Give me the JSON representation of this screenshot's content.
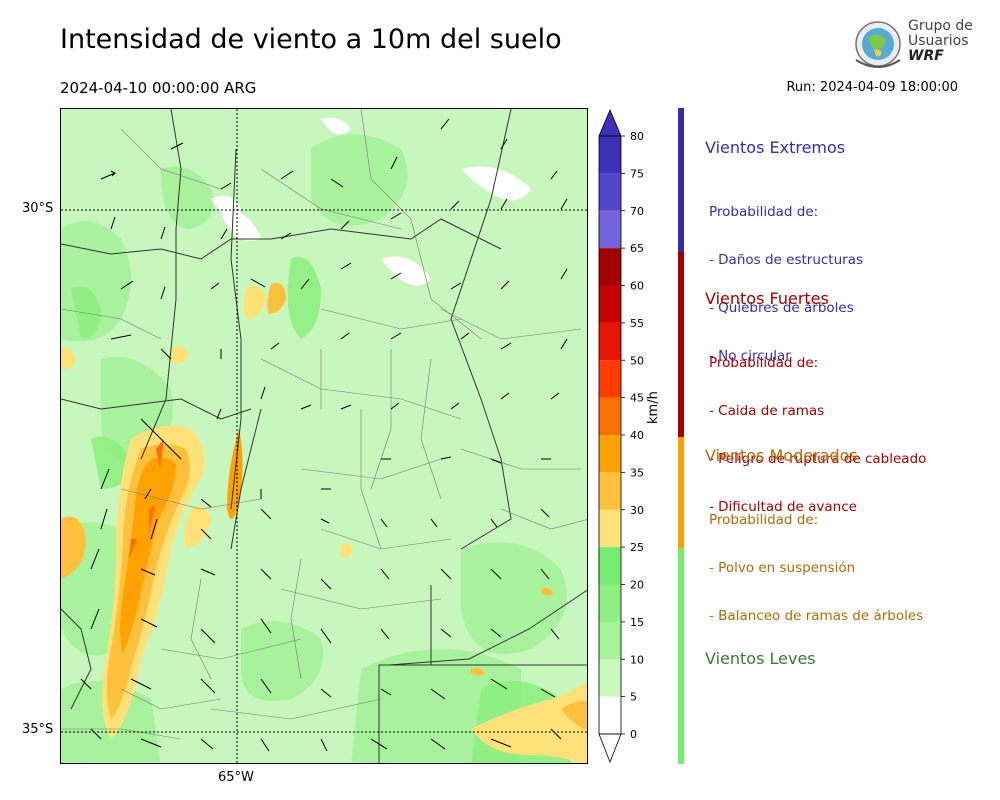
{
  "title": "Intensidad de viento a 10m del suelo",
  "valid_time": "2024-04-10 00:00:00 ARG",
  "run_time": "Run: 2024-04-09 18:00:00",
  "logo": {
    "line1": "Grupo de",
    "line2": "Usuarios",
    "line3": "WRF"
  },
  "map": {
    "lat_labels": [
      "30°S",
      "35°S"
    ],
    "lon_labels": [
      "65°W"
    ]
  },
  "colorbar": {
    "unit": "km/h",
    "ticks": [
      "0",
      "5",
      "10",
      "15",
      "20",
      "25",
      "30",
      "35",
      "40",
      "45",
      "50",
      "55",
      "60",
      "65",
      "70",
      "75",
      "80"
    ],
    "colors": [
      "#ffffff",
      "#c8f9bb",
      "#a8f29c",
      "#8eef82",
      "#74ec6e",
      "#ffe17a",
      "#ffc13c",
      "#ffa100",
      "#ff6f00",
      "#ff3b00",
      "#e61400",
      "#c50000",
      "#a30000",
      "#7463dc",
      "#5544cd",
      "#3f2fb8"
    ]
  },
  "categories": [
    {
      "name": "Vientos Extremos",
      "color": "#3a2aaa",
      "prob": "Probabilidad de:",
      "items": [
        "- Daños de estructuras",
        "- Quiebres de árboles",
        "- No circular"
      ]
    },
    {
      "name": "Vientos Fuertes",
      "color": "#a30000",
      "prob": "Probabilidad de:",
      "items": [
        "- Caida de ramas",
        "- Peligro de ruptura de cableado",
        "- Dificultad de avance"
      ]
    },
    {
      "name": "Vientos Moderados",
      "color": "#b06b0a",
      "prob": "Probabilidad de:",
      "items": [
        "- Polvo en suspensión",
        "- Balanceo de ramas de árboles"
      ]
    },
    {
      "name": "Vientos Leves",
      "color": "#3a7a3a",
      "prob": "",
      "items": []
    }
  ],
  "side_bar_colors": [
    "#3a2aaa",
    "#a30000",
    "#ffa000",
    "#74ec6e"
  ]
}
